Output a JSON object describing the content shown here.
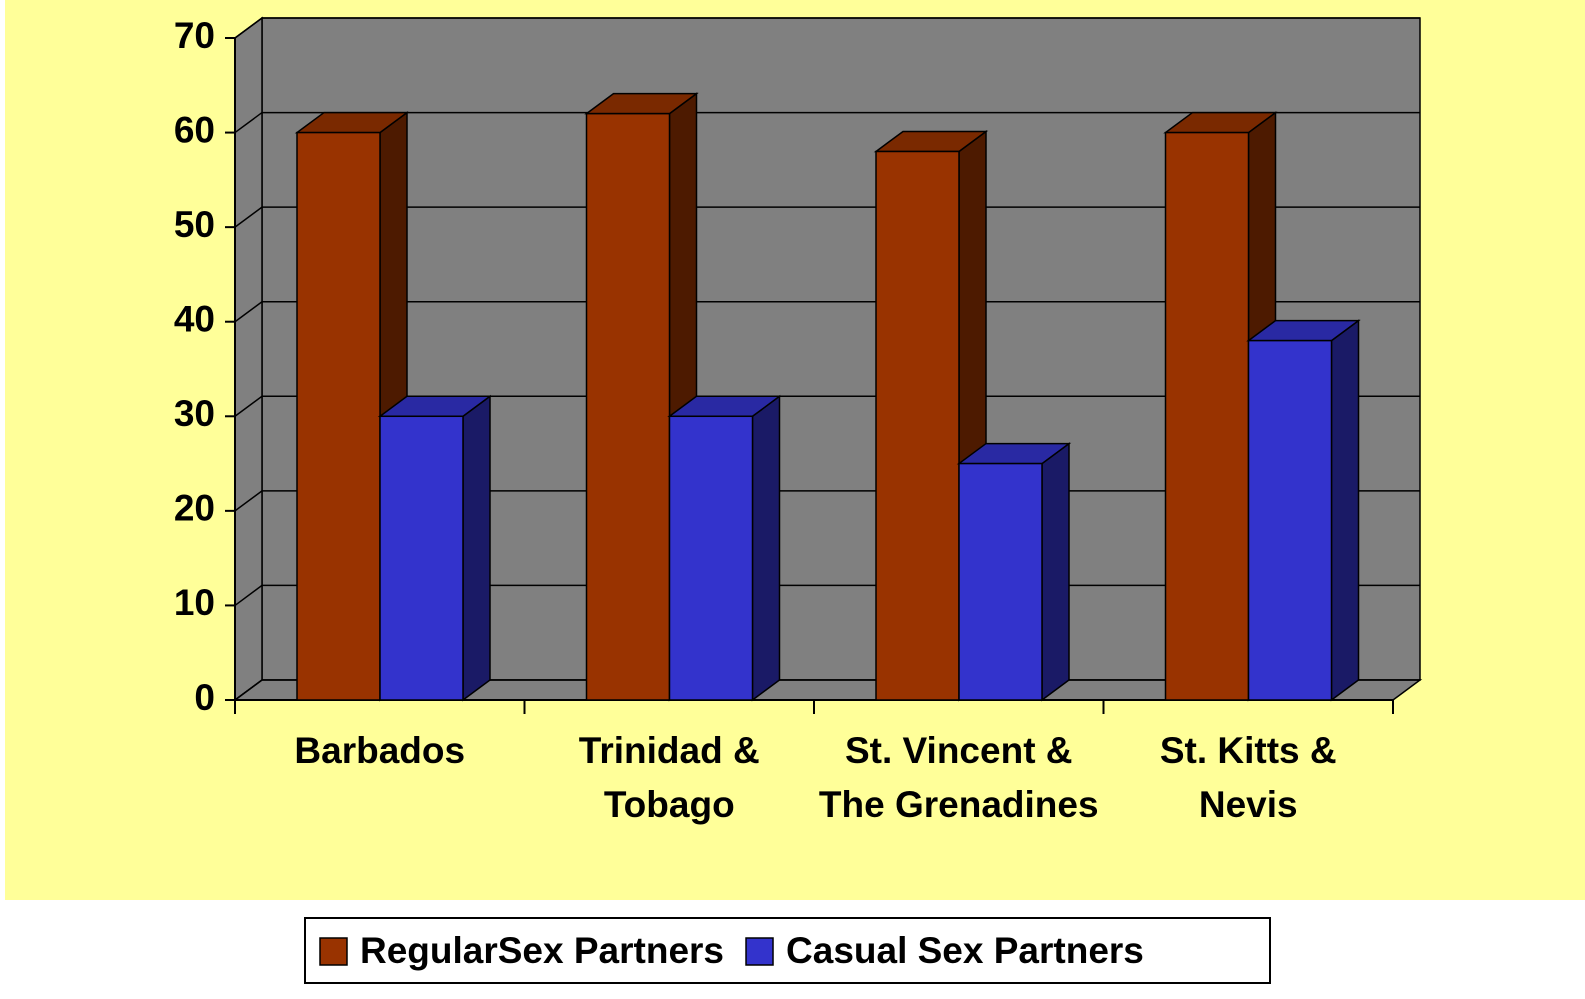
{
  "chart_data": {
    "type": "bar3d",
    "categories": [
      "Barbados",
      "Trinidad & Tobago",
      "St. Vincent & The Grenadines",
      "St. Kitts & Nevis"
    ],
    "series": [
      {
        "name": "RegularSex Partners",
        "color": "#993300",
        "values": [
          60,
          62,
          58,
          60
        ]
      },
      {
        "name": "Casual Sex Partners",
        "color": "#3333cc",
        "values": [
          30,
          30,
          25,
          38
        ]
      }
    ],
    "ylim": [
      0,
      70
    ],
    "yticks": [
      0,
      10,
      20,
      30,
      40,
      50,
      60,
      70
    ],
    "grid": true,
    "legend": "bottom"
  }
}
